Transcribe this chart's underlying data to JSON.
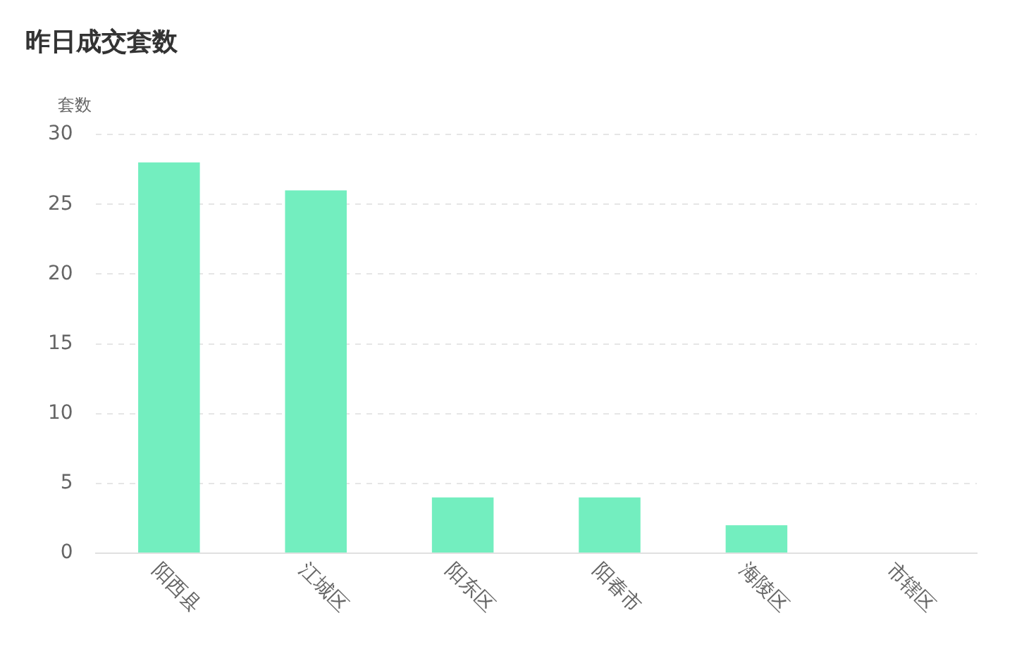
{
  "chart_data": {
    "type": "bar",
    "title": "昨日成交套数",
    "ylabel": "套数",
    "categories": [
      "阳西县",
      "江城区",
      "阳东区",
      "阳春市",
      "海陵区",
      "市辖区"
    ],
    "values": [
      28,
      26,
      4,
      4,
      2,
      0
    ],
    "color": "#73eebf",
    "ylim": [
      0,
      30
    ],
    "yticks": [
      0,
      5,
      10,
      15,
      20,
      25,
      30
    ],
    "grid": "y",
    "legend": false
  }
}
